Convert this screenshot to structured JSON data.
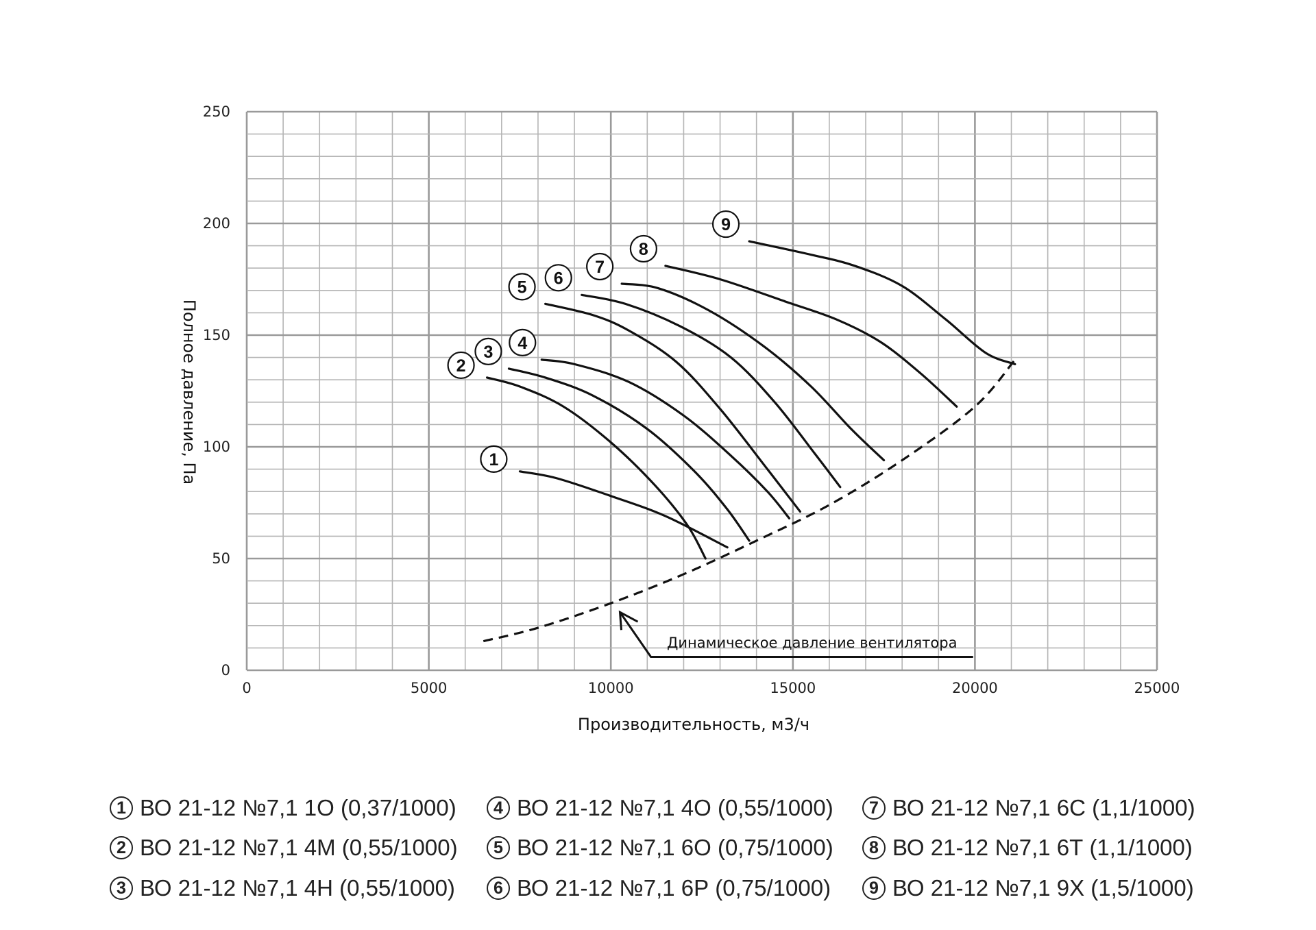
{
  "chart_data": {
    "type": "line",
    "xlabel": "Производительность, м3/ч",
    "ylabel": "Полное давление, Па",
    "xlim": [
      0,
      25000
    ],
    "ylim": [
      0,
      250
    ],
    "x_ticks": [
      "0",
      "5000",
      "10000",
      "15000",
      "20000",
      "25000"
    ],
    "y_ticks": [
      "0",
      "50",
      "100",
      "150",
      "200",
      "250"
    ],
    "grid": true,
    "series": [
      {
        "name": "1",
        "points": [
          [
            7500,
            89
          ],
          [
            8500,
            86
          ],
          [
            10000,
            78
          ],
          [
            11500,
            69
          ],
          [
            13200,
            55
          ]
        ]
      },
      {
        "name": "2",
        "points": [
          [
            6600,
            131
          ],
          [
            7500,
            127
          ],
          [
            8700,
            118
          ],
          [
            10000,
            102
          ],
          [
            11200,
            83
          ],
          [
            12100,
            65
          ],
          [
            12600,
            50
          ]
        ]
      },
      {
        "name": "3",
        "points": [
          [
            7200,
            135
          ],
          [
            8200,
            131
          ],
          [
            9500,
            123
          ],
          [
            11000,
            108
          ],
          [
            12300,
            89
          ],
          [
            13200,
            72
          ],
          [
            13800,
            58
          ]
        ]
      },
      {
        "name": "4",
        "points": [
          [
            8100,
            139
          ],
          [
            9000,
            137
          ],
          [
            10500,
            129
          ],
          [
            12000,
            114
          ],
          [
            13300,
            96
          ],
          [
            14300,
            80
          ],
          [
            14900,
            68
          ]
        ]
      },
      {
        "name": "5",
        "points": [
          [
            8200,
            164
          ],
          [
            9500,
            159
          ],
          [
            10500,
            152
          ],
          [
            11800,
            138
          ],
          [
            13000,
            117
          ],
          [
            14300,
            90
          ],
          [
            15200,
            71
          ]
        ]
      },
      {
        "name": "6",
        "points": [
          [
            9200,
            168
          ],
          [
            10400,
            164
          ],
          [
            11900,
            154
          ],
          [
            13300,
            140
          ],
          [
            14500,
            120
          ],
          [
            15600,
            97
          ],
          [
            16300,
            82
          ]
        ]
      },
      {
        "name": "7",
        "points": [
          [
            10300,
            173
          ],
          [
            11300,
            171
          ],
          [
            12700,
            161
          ],
          [
            14200,
            145
          ],
          [
            15500,
            127
          ],
          [
            16600,
            108
          ],
          [
            17500,
            94
          ]
        ]
      },
      {
        "name": "8",
        "points": [
          [
            11500,
            181
          ],
          [
            13000,
            175
          ],
          [
            14800,
            165
          ],
          [
            16200,
            157
          ],
          [
            17400,
            147
          ],
          [
            18500,
            133
          ],
          [
            19500,
            118
          ]
        ]
      },
      {
        "name": "9",
        "points": [
          [
            13800,
            192
          ],
          [
            15500,
            186
          ],
          [
            16700,
            181
          ],
          [
            18000,
            172
          ],
          [
            19200,
            157
          ],
          [
            20300,
            142
          ],
          [
            21100,
            137
          ]
        ]
      }
    ],
    "dynamic_pressure": {
      "label": "Динамическое давление вентилятора",
      "points": [
        [
          6500,
          13
        ],
        [
          8000,
          19
        ],
        [
          10000,
          30
        ],
        [
          12000,
          43
        ],
        [
          14000,
          58
        ],
        [
          16000,
          74
        ],
        [
          18000,
          94
        ],
        [
          20000,
          118
        ],
        [
          21100,
          139
        ]
      ]
    },
    "marker_labels": [
      "1",
      "2",
      "3",
      "4",
      "5",
      "6",
      "7",
      "8",
      "9"
    ]
  },
  "legend": [
    {
      "num": "1",
      "label": "ВО 21-12 №7,1 1О (0,37/1000)"
    },
    {
      "num": "2",
      "label": "ВО 21-12 №7,1 4М (0,55/1000)"
    },
    {
      "num": "3",
      "label": "ВО 21-12 №7,1 4Н (0,55/1000)"
    },
    {
      "num": "4",
      "label": "ВО 21-12 №7,1 4О (0,55/1000)"
    },
    {
      "num": "5",
      "label": "ВО 21-12 №7,1 6О (0,75/1000)"
    },
    {
      "num": "6",
      "label": "ВО 21-12 №7,1 6Р (0,75/1000)"
    },
    {
      "num": "7",
      "label": "ВО 21-12 №7,1 6С (1,1/1000)"
    },
    {
      "num": "8",
      "label": "ВО 21-12 №7,1 6Т (1,1/1000)"
    },
    {
      "num": "9",
      "label": "ВО 21-12 №7,1 9Х (1,5/1000)"
    }
  ]
}
